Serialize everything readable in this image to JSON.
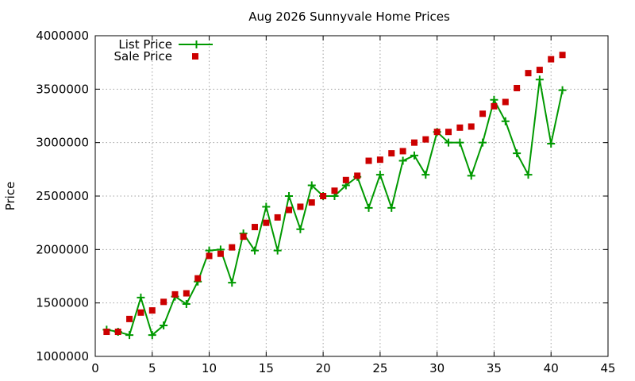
{
  "chart_data": {
    "type": "line",
    "title": "Aug 2026 Sunnyvale Home Prices",
    "xlabel": "",
    "ylabel": "Price",
    "xlim": [
      0,
      45
    ],
    "ylim": [
      1000000,
      4000000
    ],
    "xticks": [
      0,
      5,
      10,
      15,
      20,
      25,
      30,
      35,
      40,
      45
    ],
    "yticks": [
      1000000,
      1500000,
      2000000,
      2500000,
      3000000,
      3500000,
      4000000
    ],
    "grid": true,
    "legend_position": "top-left",
    "x": [
      1,
      2,
      3,
      4,
      5,
      6,
      7,
      8,
      9,
      10,
      11,
      12,
      13,
      14,
      15,
      16,
      17,
      18,
      19,
      20,
      21,
      22,
      23,
      24,
      25,
      26,
      27,
      28,
      29,
      30,
      31,
      32,
      33,
      34,
      35,
      36,
      37,
      38,
      39,
      40,
      41
    ],
    "series": [
      {
        "name": "List Price",
        "style": "line-plus",
        "color": "#009900",
        "values": [
          1250000,
          1230000,
          1200000,
          1550000,
          1200000,
          1290000,
          1560000,
          1490000,
          1700000,
          1990000,
          2000000,
          1690000,
          2150000,
          1990000,
          2400000,
          1990000,
          2500000,
          2190000,
          2600000,
          2500000,
          2500000,
          2600000,
          2680000,
          2390000,
          2700000,
          2390000,
          2830000,
          2880000,
          2700000,
          3100000,
          3000000,
          3000000,
          2690000,
          3000000,
          3400000,
          3200000,
          2900000,
          2700000,
          3590000,
          2990000,
          3490000
        ]
      },
      {
        "name": "Sale Price",
        "style": "square",
        "color": "#cc0000",
        "values": [
          1230000,
          1230000,
          1350000,
          1410000,
          1430000,
          1510000,
          1580000,
          1590000,
          1730000,
          1940000,
          1960000,
          2020000,
          2120000,
          2210000,
          2250000,
          2300000,
          2370000,
          2400000,
          2440000,
          2500000,
          2550000,
          2650000,
          2690000,
          2830000,
          2840000,
          2900000,
          2920000,
          3000000,
          3030000,
          3100000,
          3100000,
          3140000,
          3150000,
          3270000,
          3340000,
          3380000,
          3510000,
          3650000,
          3680000,
          3780000,
          3820000
        ]
      }
    ]
  }
}
